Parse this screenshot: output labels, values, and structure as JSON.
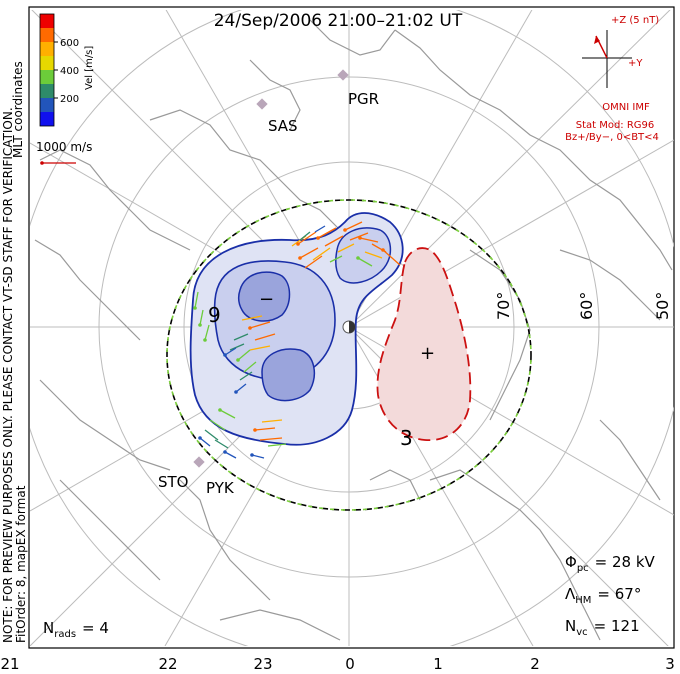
{
  "title": "24/Sep/2006 21:00–21:02 UT",
  "side_label_mlt": "MLT coordinates",
  "side_label_note": "NOTE: FOR PREVIEW PURPOSES ONLY. PLEASE CONTACT VT-SD STAFF FOR VERIFICATION.",
  "side_label_fit": "FitOrder: 8, mapEX format",
  "colorbar": {
    "title": "Vel [m/s]",
    "ticks": [
      "600",
      "400",
      "200"
    ],
    "colors": [
      "#ee0000",
      "#ff6a00",
      "#ffb000",
      "#e6d800",
      "#6ccc3a",
      "#2e8b6a",
      "#2255bb",
      "#1010ee"
    ]
  },
  "scale_vector_label": "1000 m/s",
  "imf": {
    "z_label": "+Z (5 nT)",
    "y_label": "+Y",
    "source": "OMNI IMF",
    "stat_mod": "Stat Mod: RG96",
    "condition": "Bz+/By−, 0<BT<4"
  },
  "stations": [
    "PGR",
    "SAS",
    "STO",
    "PYK"
  ],
  "latitude_labels": [
    "70°",
    "60°",
    "50°"
  ],
  "contour_labels": [
    "9",
    "3"
  ],
  "cell_signs": [
    "−",
    "+"
  ],
  "mlt_axis": [
    "21",
    "22",
    "23",
    "0",
    "1",
    "2",
    "3"
  ],
  "stats": {
    "phi_pc": {
      "symbol": "Φ",
      "sub": "pc",
      "value": "= 28 kV"
    },
    "lambda_hm": {
      "symbol": "Λ",
      "sub": "HM",
      "value": "= 67°"
    },
    "n_vc": {
      "symbol": "N",
      "sub": "vc",
      "value": "= 121"
    },
    "n_rads": {
      "symbol": "N",
      "sub": "rads",
      "value": "= 4"
    }
  },
  "colors": {
    "negative_cell": "#1a2fa8",
    "negative_fill": "#dfe3f4",
    "positive_cell": "#cc1111",
    "positive_fill": "#f3dada",
    "boundary_green": "#7ccf3c",
    "grid": "#b8b8b8",
    "land": "#9a9a9a"
  }
}
